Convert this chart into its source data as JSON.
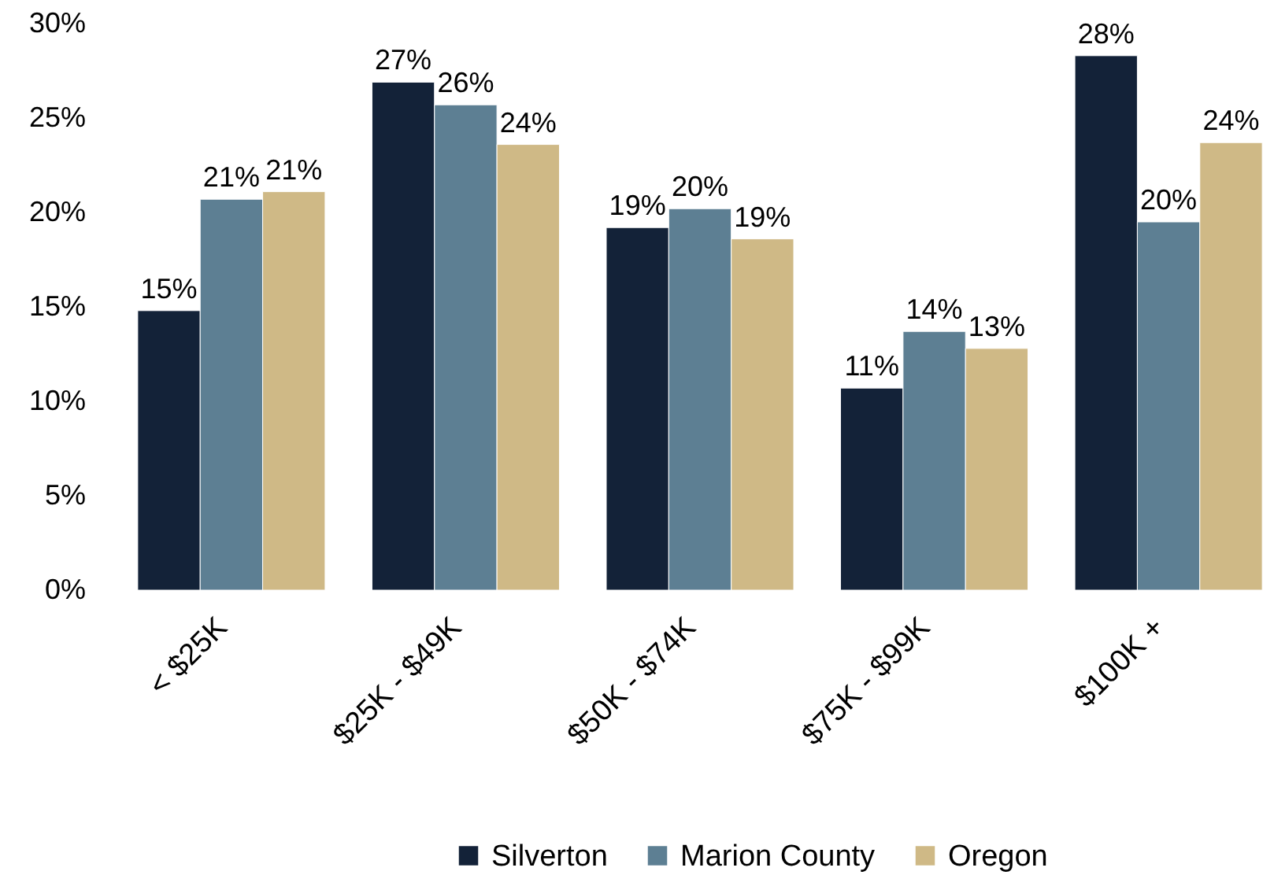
{
  "chart_data": {
    "type": "bar",
    "categories": [
      "< $25K",
      "$25K - $49K",
      "$50K - $74K",
      "$75K - $99K",
      "$100K +"
    ],
    "series": [
      {
        "name": "Silverton",
        "color": "#132238",
        "values": [
          14.8,
          26.9,
          19.2,
          10.7,
          28.3
        ],
        "value_labels": [
          "15%",
          "27%",
          "19%",
          "11%",
          "28%"
        ]
      },
      {
        "name": "Marion County",
        "color": "#5d7f93",
        "values": [
          20.7,
          25.7,
          20.2,
          13.7,
          19.5
        ],
        "value_labels": [
          "21%",
          "26%",
          "20%",
          "14%",
          "20%"
        ]
      },
      {
        "name": "Oregon",
        "color": "#cfb986",
        "values": [
          21.1,
          23.6,
          18.6,
          12.8,
          23.7
        ],
        "value_labels": [
          "21%",
          "24%",
          "19%",
          "13%",
          "24%"
        ]
      }
    ],
    "ylim": [
      0,
      30
    ],
    "yticks": [
      {
        "value": 0,
        "label": "0%"
      },
      {
        "value": 5,
        "label": "5%"
      },
      {
        "value": 10,
        "label": "10%"
      },
      {
        "value": 15,
        "label": "15%"
      },
      {
        "value": 20,
        "label": "20%"
      },
      {
        "value": 25,
        "label": "25%"
      },
      {
        "value": 30,
        "label": "30%"
      }
    ],
    "legend": "bottom",
    "grid": false
  }
}
